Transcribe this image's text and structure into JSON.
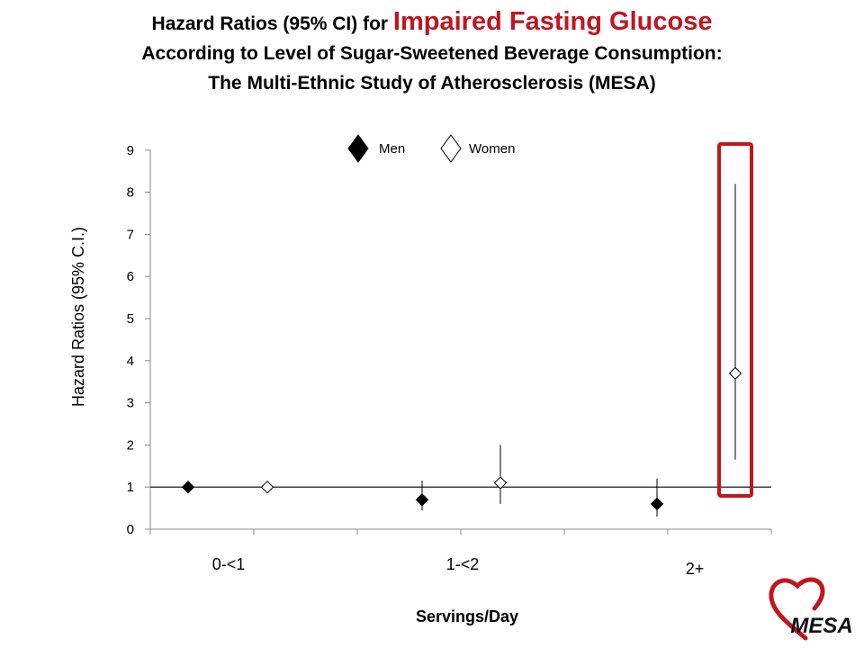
{
  "title": {
    "line1_prefix": "Hazard Ratios (95% CI) for ",
    "line1_highlight": "Impaired Fasting Glucose",
    "line2": "According to Level of Sugar-Sweetened Beverage Consumption:",
    "line3": "The Multi-Ethnic Study of Atherosclerosis (MESA)",
    "highlight_color": "#c0161e"
  },
  "logo": {
    "text": "MESA",
    "color": "#c0161e"
  },
  "chart_data": {
    "type": "scatter",
    "title": "Hazard Ratios (95% CI) for Impaired Fasting Glucose According to Level of Sugar-Sweetened Beverage Consumption: The Multi-Ethnic Study of Atherosclerosis (MESA)",
    "xlabel": "Servings/Day",
    "ylabel": "Hazard Ratios (95% C.I.)",
    "ylim": [
      0,
      9
    ],
    "yticks": [
      0,
      1,
      2,
      3,
      4,
      5,
      6,
      7,
      8,
      9
    ],
    "categories": [
      "0-<1",
      "1-<2",
      "2+"
    ],
    "reference_line": 1,
    "grid": false,
    "legend": "top-center",
    "series": [
      {
        "name": "Men",
        "marker": "filled-diamond",
        "values": [
          1.0,
          0.7,
          0.6
        ],
        "ci_low": [
          null,
          0.45,
          0.3
        ],
        "ci_high": [
          null,
          1.15,
          1.2
        ]
      },
      {
        "name": "Women",
        "marker": "open-diamond",
        "values": [
          1.0,
          1.1,
          3.7
        ],
        "ci_low": [
          null,
          0.6,
          1.65
        ],
        "ci_high": [
          null,
          2.0,
          8.2
        ]
      }
    ],
    "highlight": {
      "category": "2+",
      "series": "Women",
      "color": "#c0161e"
    }
  }
}
